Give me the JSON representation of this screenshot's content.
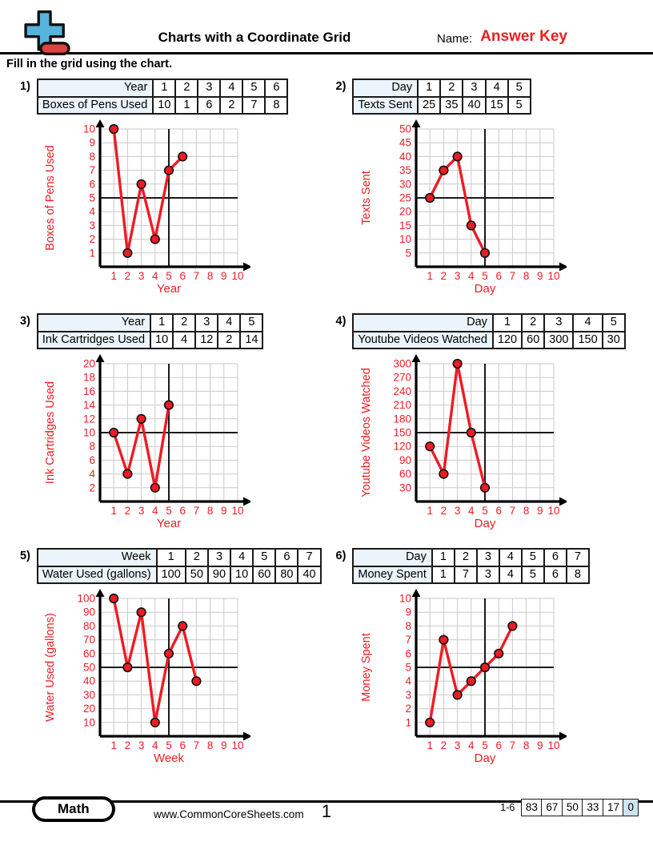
{
  "header": {
    "title": "Charts with a Coordinate Grid",
    "name_label": "Name:",
    "answer_key": "Answer Key"
  },
  "instructions": "Fill in the grid using the chart.",
  "colors": {
    "red": "#ed1c24",
    "grid": "#c9c9c9",
    "crosshair": "#1a1a1a",
    "axis": "#000000",
    "table_label_bg": "#eaf4fa",
    "score_highlight_bg": "#cfe3f5",
    "logo_blue": "#56b3dd",
    "logo_red": "#e2403c"
  },
  "problems": [
    {
      "number": "1)",
      "table": {
        "header_label": "Year",
        "columns": [
          "1",
          "2",
          "3",
          "4",
          "5",
          "6"
        ],
        "row_label": "Boxes of Pens Used",
        "values": [
          "10",
          "1",
          "6",
          "2",
          "7",
          "8"
        ]
      }
    },
    {
      "number": "2)",
      "table": {
        "header_label": "Day",
        "columns": [
          "1",
          "2",
          "3",
          "4",
          "5"
        ],
        "row_label": "Texts Sent",
        "values": [
          "25",
          "35",
          "40",
          "15",
          "5"
        ]
      }
    },
    {
      "number": "3)",
      "table": {
        "header_label": "Year",
        "columns": [
          "1",
          "2",
          "3",
          "4",
          "5"
        ],
        "row_label": "Ink Cartridges Used",
        "values": [
          "10",
          "4",
          "12",
          "2",
          "14"
        ]
      }
    },
    {
      "number": "4)",
      "table": {
        "header_label": "Day",
        "columns": [
          "1",
          "2",
          "3",
          "4",
          "5"
        ],
        "row_label": "Youtube Videos Watched",
        "values": [
          "120",
          "60",
          "300",
          "150",
          "30"
        ]
      }
    },
    {
      "number": "5)",
      "table": {
        "header_label": "Week",
        "columns": [
          "1",
          "2",
          "3",
          "4",
          "5",
          "6",
          "7"
        ],
        "row_label": "Water Used (gallons)",
        "values": [
          "100",
          "50",
          "90",
          "10",
          "60",
          "80",
          "40"
        ]
      }
    },
    {
      "number": "6)",
      "table": {
        "header_label": "Day",
        "columns": [
          "1",
          "2",
          "3",
          "4",
          "5",
          "6",
          "7"
        ],
        "row_label": "Money Spent",
        "values": [
          "1",
          "7",
          "3",
          "4",
          "5",
          "6",
          "8"
        ]
      }
    }
  ],
  "chart_data": [
    {
      "type": "line",
      "xlabel": "Year",
      "ylabel": "Boxes of Pens Used",
      "x": [
        1,
        2,
        3,
        4,
        5,
        6
      ],
      "y": [
        10,
        1,
        6,
        2,
        7,
        8
      ],
      "xticks": [
        1,
        2,
        3,
        4,
        5,
        6,
        7,
        8,
        9,
        10
      ],
      "yticks": [
        1,
        2,
        3,
        4,
        5,
        6,
        7,
        8,
        9,
        10
      ],
      "ystep": 1,
      "xlim": [
        0,
        10
      ],
      "ylim": [
        0,
        10
      ],
      "grid": true,
      "crosshair": {
        "x": 5,
        "y": 5
      },
      "line_color": "#ed1c24",
      "point_color": "#ed1c24",
      "label_color": "#ed1c24"
    },
    {
      "type": "line",
      "xlabel": "Day",
      "ylabel": "Texts Sent",
      "x": [
        1,
        2,
        3,
        4,
        5
      ],
      "y": [
        25,
        35,
        40,
        15,
        5
      ],
      "xticks": [
        1,
        2,
        3,
        4,
        5,
        6,
        7,
        8,
        9,
        10
      ],
      "yticks": [
        5,
        10,
        15,
        20,
        25,
        30,
        35,
        40,
        45,
        50
      ],
      "ystep": 5,
      "xlim": [
        0,
        10
      ],
      "ylim": [
        0,
        50
      ],
      "grid": true,
      "crosshair": {
        "x": 5,
        "y": 25
      },
      "line_color": "#ed1c24",
      "point_color": "#ed1c24",
      "label_color": "#ed1c24"
    },
    {
      "type": "line",
      "xlabel": "Year",
      "ylabel": "Ink Cartridges Used",
      "x": [
        1,
        2,
        3,
        4,
        5
      ],
      "y": [
        10,
        4,
        12,
        2,
        14
      ],
      "xticks": [
        1,
        2,
        3,
        4,
        5,
        6,
        7,
        8,
        9,
        10
      ],
      "yticks": [
        2,
        4,
        6,
        8,
        10,
        12,
        14,
        16,
        18,
        20
      ],
      "ystep": 2,
      "xlim": [
        0,
        10
      ],
      "ylim": [
        0,
        20
      ],
      "grid": true,
      "crosshair": {
        "x": 5,
        "y": 10
      },
      "line_color": "#ed1c24",
      "point_color": "#ed1c24",
      "label_color": "#ed1c24"
    },
    {
      "type": "line",
      "xlabel": "Day",
      "ylabel": "Youtube Videos Watched",
      "x": [
        1,
        2,
        3,
        4,
        5
      ],
      "y": [
        120,
        60,
        300,
        150,
        30
      ],
      "xticks": [
        1,
        2,
        3,
        4,
        5,
        6,
        7,
        8,
        9,
        10
      ],
      "yticks": [
        30,
        60,
        90,
        120,
        150,
        180,
        210,
        240,
        270,
        300
      ],
      "ystep": 30,
      "xlim": [
        0,
        10
      ],
      "ylim": [
        0,
        300
      ],
      "grid": true,
      "crosshair": {
        "x": 5,
        "y": 150
      },
      "line_color": "#ed1c24",
      "point_color": "#ed1c24",
      "label_color": "#ed1c24"
    },
    {
      "type": "line",
      "xlabel": "Week",
      "ylabel": "Water Used (gallons)",
      "x": [
        1,
        2,
        3,
        4,
        5,
        6,
        7
      ],
      "y": [
        100,
        50,
        90,
        10,
        60,
        80,
        40
      ],
      "xticks": [
        1,
        2,
        3,
        4,
        5,
        6,
        7,
        8,
        9,
        10
      ],
      "yticks": [
        10,
        20,
        30,
        40,
        50,
        60,
        70,
        80,
        90,
        100
      ],
      "ystep": 10,
      "xlim": [
        0,
        10
      ],
      "ylim": [
        0,
        100
      ],
      "grid": true,
      "crosshair": {
        "x": 5,
        "y": 50
      },
      "line_color": "#ed1c24",
      "point_color": "#ed1c24",
      "label_color": "#ed1c24"
    },
    {
      "type": "line",
      "xlabel": "Day",
      "ylabel": "Money Spent",
      "x": [
        1,
        2,
        3,
        4,
        5,
        6,
        7
      ],
      "y": [
        1,
        7,
        3,
        4,
        5,
        6,
        8
      ],
      "xticks": [
        1,
        2,
        3,
        4,
        5,
        6,
        7,
        8,
        9,
        10
      ],
      "yticks": [
        1,
        2,
        3,
        4,
        5,
        6,
        7,
        8,
        9,
        10
      ],
      "ystep": 1,
      "xlim": [
        0,
        10
      ],
      "ylim": [
        0,
        10
      ],
      "grid": true,
      "crosshair": {
        "x": 5,
        "y": 5
      },
      "line_color": "#ed1c24",
      "point_color": "#ed1c24",
      "label_color": "#ed1c24"
    }
  ],
  "footer": {
    "subject": "Math",
    "website": "www.CommonCoreSheets.com",
    "page_number": "1",
    "score_label": "1-6",
    "scores": [
      "83",
      "67",
      "50",
      "33",
      "17",
      "0"
    ]
  }
}
